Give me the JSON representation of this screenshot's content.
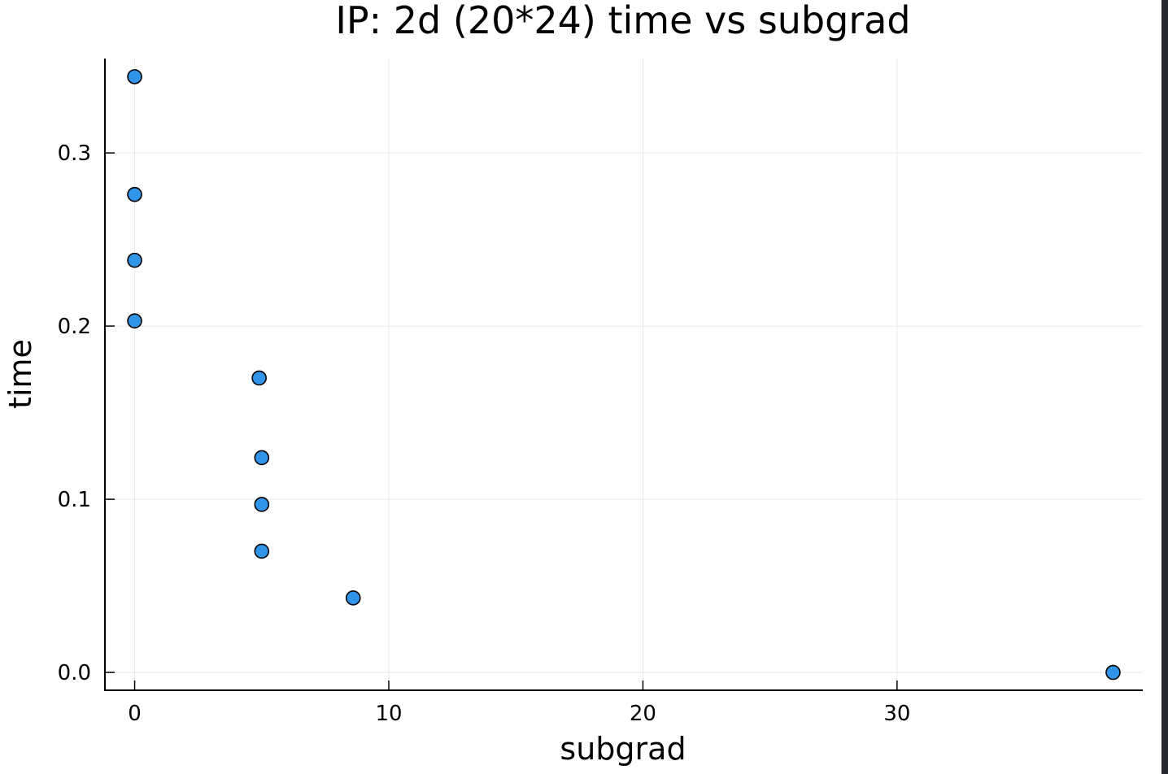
{
  "chart_data": {
    "type": "scatter",
    "title": "IP: 2d (20*24) time vs subgrad",
    "xlabel": "subgrad",
    "ylabel": "time",
    "x_ticks": [
      "0",
      "10",
      "20",
      "30"
    ],
    "y_ticks": [
      "0.0",
      "0.1",
      "0.2",
      "0.3"
    ],
    "xlim": [
      -1.17,
      39.67
    ],
    "ylim": [
      -0.0103,
      0.3545
    ],
    "grid": true,
    "legend": "none",
    "marker_color": "#3094e8",
    "marker_edge_color": "#000000",
    "points": [
      {
        "x": 0,
        "y": 0.344
      },
      {
        "x": 0,
        "y": 0.276
      },
      {
        "x": 0,
        "y": 0.238
      },
      {
        "x": 0,
        "y": 0.203
      },
      {
        "x": 4.9,
        "y": 0.17
      },
      {
        "x": 5.0,
        "y": 0.124
      },
      {
        "x": 5.0,
        "y": 0.097
      },
      {
        "x": 5.0,
        "y": 0.07
      },
      {
        "x": 8.6,
        "y": 0.043
      },
      {
        "x": 38.5,
        "y": 0.0
      }
    ]
  }
}
